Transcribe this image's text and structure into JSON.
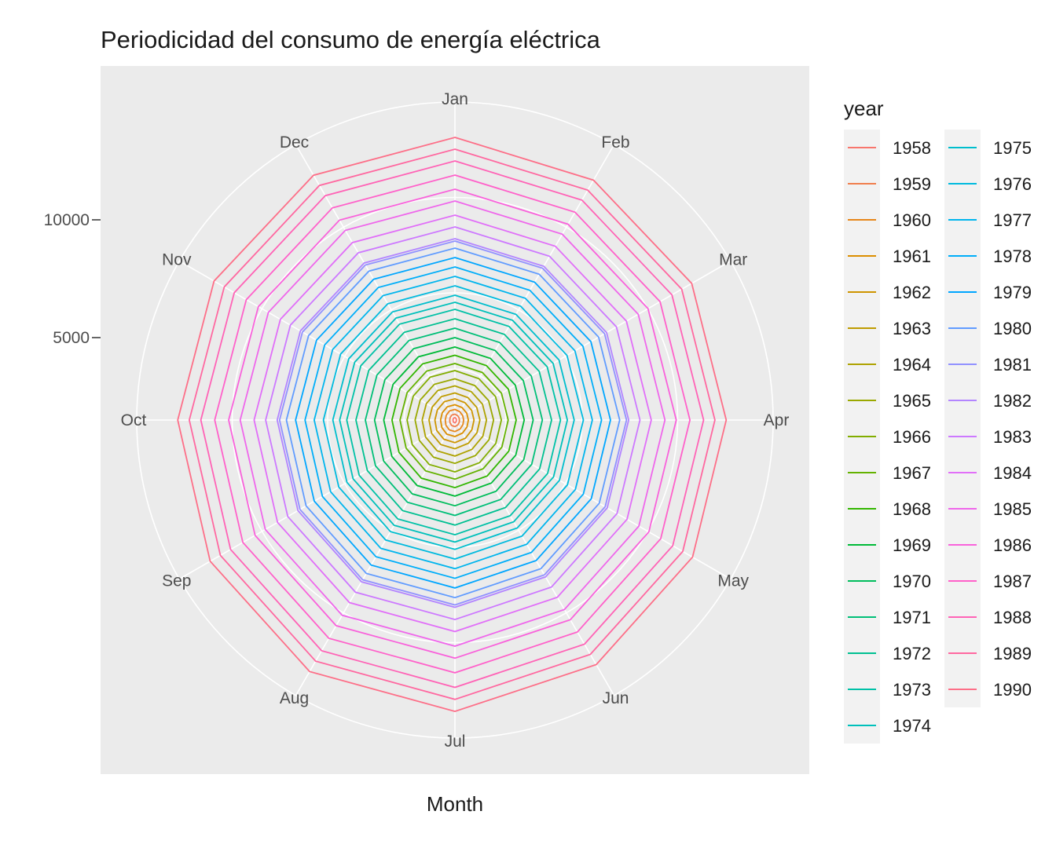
{
  "chart_data": {
    "type": "line",
    "coord": "polar",
    "title": "Periodicidad del consumo de energía eléctrica",
    "xlabel": "Month",
    "ylabel": "",
    "categories": [
      "Jan",
      "Feb",
      "Mar",
      "Apr",
      "May",
      "Jun",
      "Jul",
      "Aug",
      "Sep",
      "Oct",
      "Nov",
      "Dec"
    ],
    "y_ticks": [
      5000,
      10000
    ],
    "ylim": [
      1500,
      15000
    ],
    "grid": true,
    "legend": {
      "title": "year",
      "placement": "right",
      "columns": 2,
      "entries": [
        "1958",
        "1959",
        "1960",
        "1961",
        "1962",
        "1963",
        "1964",
        "1965",
        "1966",
        "1967",
        "1968",
        "1969",
        "1970",
        "1971",
        "1972",
        "1973",
        "1974",
        "1975",
        "1976",
        "1977",
        "1978",
        "1979",
        "1980",
        "1981",
        "1982",
        "1983",
        "1984",
        "1985",
        "1986",
        "1987",
        "1988",
        "1989",
        "1990"
      ]
    },
    "series": [
      {
        "name": "1958",
        "values": [
          1600,
          1580,
          1570,
          1560,
          1570,
          1590,
          1620,
          1610,
          1590,
          1580,
          1590,
          1600
        ]
      },
      {
        "name": "1959",
        "values": [
          1750,
          1720,
          1700,
          1690,
          1710,
          1740,
          1780,
          1770,
          1740,
          1720,
          1730,
          1750
        ]
      },
      {
        "name": "1960",
        "values": [
          1950,
          1910,
          1880,
          1870,
          1890,
          1940,
          1990,
          1980,
          1940,
          1910,
          1920,
          1950
        ]
      },
      {
        "name": "1961",
        "values": [
          2150,
          2110,
          2080,
          2070,
          2090,
          2140,
          2200,
          2190,
          2140,
          2110,
          2120,
          2150
        ]
      },
      {
        "name": "1962",
        "values": [
          2400,
          2350,
          2320,
          2310,
          2330,
          2390,
          2460,
          2440,
          2390,
          2350,
          2360,
          2400
        ]
      },
      {
        "name": "1963",
        "values": [
          2650,
          2600,
          2570,
          2560,
          2580,
          2640,
          2720,
          2700,
          2640,
          2600,
          2610,
          2650
        ]
      },
      {
        "name": "1964",
        "values": [
          2950,
          2890,
          2850,
          2840,
          2870,
          2940,
          3030,
          3010,
          2940,
          2890,
          2900,
          2950
        ]
      },
      {
        "name": "1965",
        "values": [
          3250,
          3190,
          3150,
          3140,
          3170,
          3240,
          3340,
          3320,
          3240,
          3190,
          3200,
          3250
        ]
      },
      {
        "name": "1966",
        "values": [
          3600,
          3530,
          3490,
          3470,
          3500,
          3590,
          3700,
          3680,
          3590,
          3530,
          3540,
          3600
        ]
      },
      {
        "name": "1967",
        "values": [
          3900,
          3830,
          3780,
          3760,
          3800,
          3890,
          4010,
          3990,
          3890,
          3830,
          3840,
          3900
        ]
      },
      {
        "name": "1968",
        "values": [
          4250,
          4170,
          4120,
          4100,
          4140,
          4240,
          4370,
          4350,
          4240,
          4170,
          4190,
          4250
        ]
      },
      {
        "name": "1969",
        "values": [
          4600,
          4520,
          4460,
          4440,
          4480,
          4590,
          4730,
          4710,
          4590,
          4520,
          4530,
          4600
        ]
      },
      {
        "name": "1970",
        "values": [
          5000,
          4910,
          4850,
          4820,
          4870,
          4990,
          5140,
          5120,
          4990,
          4910,
          4930,
          5000
        ]
      },
      {
        "name": "1971",
        "values": [
          5400,
          5300,
          5240,
          5210,
          5260,
          5390,
          5550,
          5530,
          5390,
          5300,
          5320,
          5400
        ]
      },
      {
        "name": "1972",
        "values": [
          5800,
          5700,
          5630,
          5600,
          5650,
          5790,
          5960,
          5940,
          5790,
          5700,
          5720,
          5800
        ]
      },
      {
        "name": "1973",
        "values": [
          6200,
          6090,
          6020,
          5980,
          6040,
          6190,
          6370,
          6350,
          6190,
          6090,
          6110,
          6200
        ]
      },
      {
        "name": "1974",
        "values": [
          6500,
          6390,
          6310,
          6270,
          6330,
          6490,
          6680,
          6660,
          6490,
          6390,
          6410,
          6500
        ]
      },
      {
        "name": "1975",
        "values": [
          6800,
          6680,
          6600,
          6560,
          6620,
          6790,
          6990,
          6970,
          6790,
          6680,
          6700,
          6800
        ]
      },
      {
        "name": "1976",
        "values": [
          7200,
          7080,
          6990,
          6950,
          7010,
          7190,
          7400,
          7380,
          7190,
          7080,
          7100,
          7200
        ]
      },
      {
        "name": "1977",
        "values": [
          7600,
          7470,
          7380,
          7330,
          7400,
          7590,
          7810,
          7790,
          7590,
          7470,
          7490,
          7600
        ]
      },
      {
        "name": "1978",
        "values": [
          8000,
          7860,
          7770,
          7720,
          7790,
          7990,
          8220,
          8200,
          7990,
          7860,
          7880,
          8000
        ]
      },
      {
        "name": "1979",
        "values": [
          8400,
          8260,
          8160,
          8100,
          8180,
          8390,
          8630,
          8610,
          8390,
          8260,
          8280,
          8400
        ]
      },
      {
        "name": "1980",
        "values": [
          8800,
          8650,
          8540,
          8490,
          8570,
          8790,
          9040,
          9020,
          8790,
          8650,
          8670,
          8800
        ]
      },
      {
        "name": "1981",
        "values": [
          9100,
          8940,
          8830,
          8780,
          8860,
          9090,
          9350,
          9330,
          9090,
          8940,
          8970,
          9100
        ]
      },
      {
        "name": "1982",
        "values": [
          9200,
          9040,
          8930,
          8870,
          8960,
          9190,
          9450,
          9430,
          9190,
          9040,
          9070,
          9200
        ]
      },
      {
        "name": "1983",
        "values": [
          9700,
          9530,
          9410,
          9350,
          9440,
          9690,
          9970,
          9940,
          9690,
          9530,
          9560,
          9700
        ]
      },
      {
        "name": "1984",
        "values": [
          10200,
          10020,
          9900,
          9830,
          9930,
          10190,
          10480,
          10450,
          10190,
          10020,
          10050,
          10200
        ]
      },
      {
        "name": "1985",
        "values": [
          10800,
          10610,
          10480,
          10410,
          10510,
          10790,
          11100,
          11070,
          10790,
          10610,
          10640,
          10800
        ]
      },
      {
        "name": "1986",
        "values": [
          11300,
          11100,
          10960,
          10890,
          11000,
          11290,
          11610,
          11580,
          11290,
          11100,
          11130,
          11300
        ]
      },
      {
        "name": "1987",
        "values": [
          11900,
          11690,
          11550,
          11470,
          11580,
          11890,
          12230,
          12200,
          11890,
          11690,
          11720,
          11900
        ]
      },
      {
        "name": "1988",
        "values": [
          12500,
          12280,
          12130,
          12050,
          12170,
          12490,
          12850,
          12810,
          12490,
          12280,
          12310,
          12500
        ]
      },
      {
        "name": "1989",
        "values": [
          13000,
          12770,
          12610,
          12530,
          12660,
          12990,
          13360,
          13320,
          12990,
          12770,
          12800,
          13000
        ]
      },
      {
        "name": "1990",
        "values": [
          13500,
          13260,
          13100,
          13010,
          13140,
          13490,
          13870,
          13830,
          13490,
          13260,
          13300,
          13500
        ]
      }
    ]
  }
}
